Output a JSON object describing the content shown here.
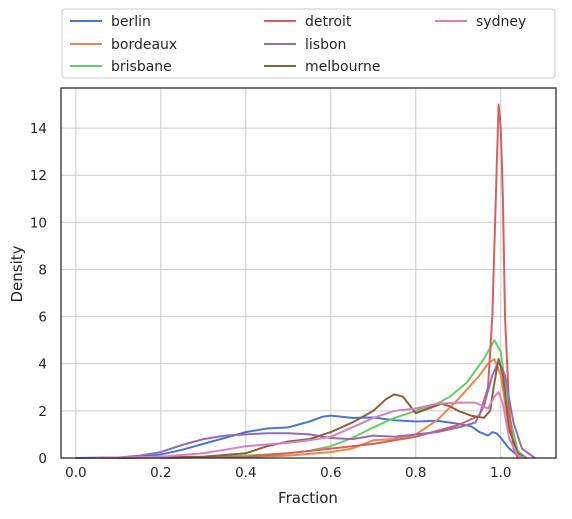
{
  "chart_data": {
    "type": "line",
    "title": "",
    "xlabel": "Fraction",
    "ylabel": "Density",
    "xlim": [
      -0.035,
      1.13
    ],
    "ylim": [
      0,
      15.7
    ],
    "xticks": [
      0.0,
      0.2,
      0.4,
      0.6,
      0.8,
      1.0
    ],
    "xtick_labels": [
      "0.0",
      "0.2",
      "0.4",
      "0.6",
      "0.8",
      "1.0"
    ],
    "yticks": [
      0,
      2,
      4,
      6,
      8,
      10,
      12,
      14
    ],
    "ytick_labels": [
      "0",
      "2",
      "4",
      "6",
      "8",
      "10",
      "12",
      "14"
    ],
    "grid": true,
    "legend_position": "top, above plot, 3 columns",
    "series": [
      {
        "name": "berlin",
        "color": "#4878d0",
        "points": [
          [
            0.0,
            0
          ],
          [
            0.1,
            0.02
          ],
          [
            0.15,
            0.05
          ],
          [
            0.2,
            0.15
          ],
          [
            0.25,
            0.35
          ],
          [
            0.3,
            0.6
          ],
          [
            0.35,
            0.85
          ],
          [
            0.4,
            1.1
          ],
          [
            0.45,
            1.25
          ],
          [
            0.5,
            1.3
          ],
          [
            0.55,
            1.55
          ],
          [
            0.58,
            1.75
          ],
          [
            0.6,
            1.8
          ],
          [
            0.65,
            1.7
          ],
          [
            0.7,
            1.72
          ],
          [
            0.75,
            1.6
          ],
          [
            0.8,
            1.55
          ],
          [
            0.85,
            1.58
          ],
          [
            0.9,
            1.45
          ],
          [
            0.93,
            1.35
          ],
          [
            0.95,
            1.1
          ],
          [
            0.97,
            0.95
          ],
          [
            0.98,
            1.1
          ],
          [
            0.99,
            1.05
          ],
          [
            1.0,
            0.85
          ],
          [
            1.02,
            0.4
          ],
          [
            1.04,
            0.1
          ],
          [
            1.06,
            0
          ]
        ]
      },
      {
        "name": "bordeaux",
        "color": "#ee854a",
        "points": [
          [
            0.05,
            0
          ],
          [
            0.3,
            0.02
          ],
          [
            0.4,
            0.05
          ],
          [
            0.5,
            0.1
          ],
          [
            0.6,
            0.25
          ],
          [
            0.65,
            0.4
          ],
          [
            0.7,
            0.75
          ],
          [
            0.75,
            0.8
          ],
          [
            0.8,
            1.0
          ],
          [
            0.85,
            1.6
          ],
          [
            0.9,
            2.5
          ],
          [
            0.95,
            3.5
          ],
          [
            0.97,
            4.0
          ],
          [
            0.985,
            4.2
          ],
          [
            1.0,
            3.5
          ],
          [
            1.02,
            1.2
          ],
          [
            1.04,
            0.2
          ],
          [
            1.06,
            0
          ]
        ]
      },
      {
        "name": "brisbane",
        "color": "#6acc64",
        "points": [
          [
            0.05,
            0
          ],
          [
            0.3,
            0.05
          ],
          [
            0.4,
            0.1
          ],
          [
            0.5,
            0.2
          ],
          [
            0.55,
            0.3
          ],
          [
            0.6,
            0.5
          ],
          [
            0.65,
            0.85
          ],
          [
            0.7,
            1.3
          ],
          [
            0.75,
            1.7
          ],
          [
            0.8,
            2.0
          ],
          [
            0.85,
            2.3
          ],
          [
            0.88,
            2.6
          ],
          [
            0.92,
            3.2
          ],
          [
            0.96,
            4.2
          ],
          [
            0.985,
            5.0
          ],
          [
            1.0,
            4.5
          ],
          [
            1.02,
            1.8
          ],
          [
            1.04,
            0.3
          ],
          [
            1.06,
            0
          ]
        ]
      },
      {
        "name": "detroit",
        "color": "#d65f5f",
        "points": [
          [
            0.2,
            0
          ],
          [
            0.4,
            0.05
          ],
          [
            0.5,
            0.2
          ],
          [
            0.6,
            0.4
          ],
          [
            0.7,
            0.6
          ],
          [
            0.8,
            0.9
          ],
          [
            0.9,
            1.4
          ],
          [
            0.95,
            1.8
          ],
          [
            0.97,
            3.0
          ],
          [
            0.98,
            6.0
          ],
          [
            0.99,
            12.0
          ],
          [
            0.995,
            15.0
          ],
          [
            1.0,
            14.0
          ],
          [
            1.005,
            11.0
          ],
          [
            1.01,
            6.0
          ],
          [
            1.02,
            2.0
          ],
          [
            1.03,
            0.4
          ],
          [
            1.04,
            0
          ]
        ]
      },
      {
        "name": "lisbon",
        "color": "#956cb4",
        "points": [
          [
            0.05,
            0
          ],
          [
            0.1,
            0.02
          ],
          [
            0.15,
            0.1
          ],
          [
            0.2,
            0.25
          ],
          [
            0.25,
            0.55
          ],
          [
            0.3,
            0.8
          ],
          [
            0.35,
            0.95
          ],
          [
            0.4,
            1.0
          ],
          [
            0.45,
            1.05
          ],
          [
            0.5,
            1.05
          ],
          [
            0.55,
            1.0
          ],
          [
            0.6,
            0.85
          ],
          [
            0.65,
            0.8
          ],
          [
            0.7,
            0.95
          ],
          [
            0.75,
            0.9
          ],
          [
            0.8,
            1.0
          ],
          [
            0.85,
            1.1
          ],
          [
            0.9,
            1.3
          ],
          [
            0.94,
            1.5
          ],
          [
            0.96,
            2.2
          ],
          [
            0.98,
            3.5
          ],
          [
            0.995,
            4.1
          ],
          [
            1.01,
            3.5
          ],
          [
            1.03,
            1.5
          ],
          [
            1.05,
            0.4
          ],
          [
            1.08,
            0
          ]
        ]
      },
      {
        "name": "melbourne",
        "color": "#8c613c",
        "points": [
          [
            0.1,
            0
          ],
          [
            0.3,
            0.05
          ],
          [
            0.4,
            0.2
          ],
          [
            0.45,
            0.5
          ],
          [
            0.5,
            0.7
          ],
          [
            0.55,
            0.8
          ],
          [
            0.6,
            1.1
          ],
          [
            0.65,
            1.5
          ],
          [
            0.7,
            2.0
          ],
          [
            0.73,
            2.5
          ],
          [
            0.75,
            2.7
          ],
          [
            0.77,
            2.6
          ],
          [
            0.8,
            1.9
          ],
          [
            0.83,
            2.1
          ],
          [
            0.86,
            2.3
          ],
          [
            0.88,
            2.2
          ],
          [
            0.9,
            2.0
          ],
          [
            0.93,
            1.8
          ],
          [
            0.96,
            1.7
          ],
          [
            0.975,
            2.0
          ],
          [
            0.985,
            3.2
          ],
          [
            0.995,
            4.2
          ],
          [
            1.005,
            3.5
          ],
          [
            1.02,
            1.2
          ],
          [
            1.04,
            0.2
          ],
          [
            1.06,
            0
          ]
        ]
      },
      {
        "name": "sydney",
        "color": "#dc7ec0",
        "points": [
          [
            0.05,
            0
          ],
          [
            0.2,
            0.05
          ],
          [
            0.3,
            0.2
          ],
          [
            0.4,
            0.5
          ],
          [
            0.5,
            0.65
          ],
          [
            0.55,
            0.75
          ],
          [
            0.6,
            0.9
          ],
          [
            0.65,
            1.3
          ],
          [
            0.7,
            1.7
          ],
          [
            0.75,
            2.0
          ],
          [
            0.8,
            2.1
          ],
          [
            0.85,
            2.3
          ],
          [
            0.9,
            2.35
          ],
          [
            0.94,
            2.35
          ],
          [
            0.97,
            2.1
          ],
          [
            0.985,
            2.6
          ],
          [
            0.995,
            2.8
          ],
          [
            1.005,
            2.3
          ],
          [
            1.02,
            0.8
          ],
          [
            1.04,
            0.1
          ],
          [
            1.06,
            0
          ]
        ]
      }
    ]
  }
}
